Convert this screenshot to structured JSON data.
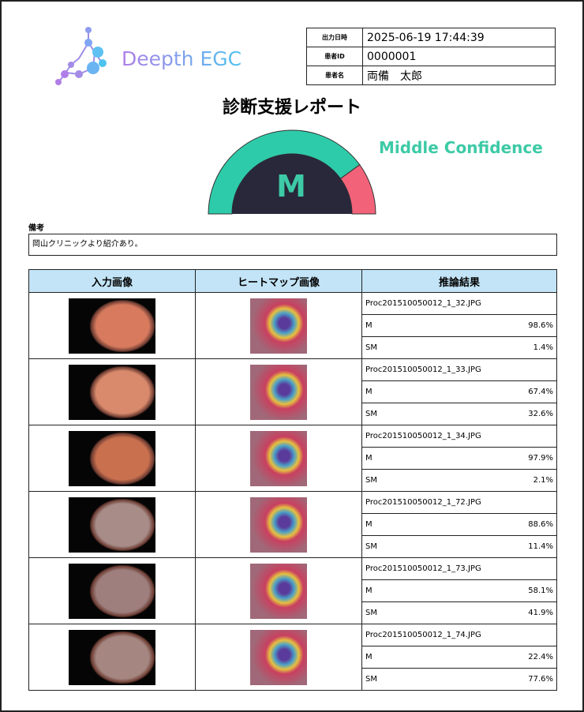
{
  "logo": {
    "text": "Deepth EGC"
  },
  "info": [
    {
      "label": "出力日時",
      "value": "2025-06-19 17:44:39"
    },
    {
      "label": "患者ID",
      "value": "0000001"
    },
    {
      "label": "患者名",
      "value": "両備　太郎"
    }
  ],
  "title": "診断支援レポート",
  "gauge": {
    "letter": "M",
    "confidence_label": "Middle Confidence",
    "teal_fraction": 0.8,
    "colors": {
      "teal": "#2ecbaa",
      "pink": "#f2637a",
      "center": "#28283a"
    }
  },
  "notes": {
    "label": "備考",
    "text": "岡山クリニックより紹介あり。"
  },
  "table": {
    "headers": [
      "入力画像",
      "ヒートマップ画像",
      "推論結果"
    ],
    "rows": [
      {
        "file": "Proc201510050012_1_32.JPG",
        "results": [
          {
            "cls": "M",
            "pct": "98.6%"
          },
          {
            "cls": "SM",
            "pct": "1.4%"
          }
        ]
      },
      {
        "file": "Proc201510050012_1_33.JPG",
        "results": [
          {
            "cls": "M",
            "pct": "67.4%"
          },
          {
            "cls": "SM",
            "pct": "32.6%"
          }
        ]
      },
      {
        "file": "Proc201510050012_1_34.JPG",
        "results": [
          {
            "cls": "M",
            "pct": "97.9%"
          },
          {
            "cls": "SM",
            "pct": "2.1%"
          }
        ]
      },
      {
        "file": "Proc201510050012_1_72.JPG",
        "results": [
          {
            "cls": "M",
            "pct": "88.6%"
          },
          {
            "cls": "SM",
            "pct": "11.4%"
          }
        ]
      },
      {
        "file": "Proc201510050012_1_73.JPG",
        "results": [
          {
            "cls": "M",
            "pct": "58.1%"
          },
          {
            "cls": "SM",
            "pct": "41.9%"
          }
        ]
      },
      {
        "file": "Proc201510050012_1_74.JPG",
        "results": [
          {
            "cls": "M",
            "pct": "22.4%"
          },
          {
            "cls": "SM",
            "pct": "77.6%"
          }
        ]
      }
    ]
  }
}
